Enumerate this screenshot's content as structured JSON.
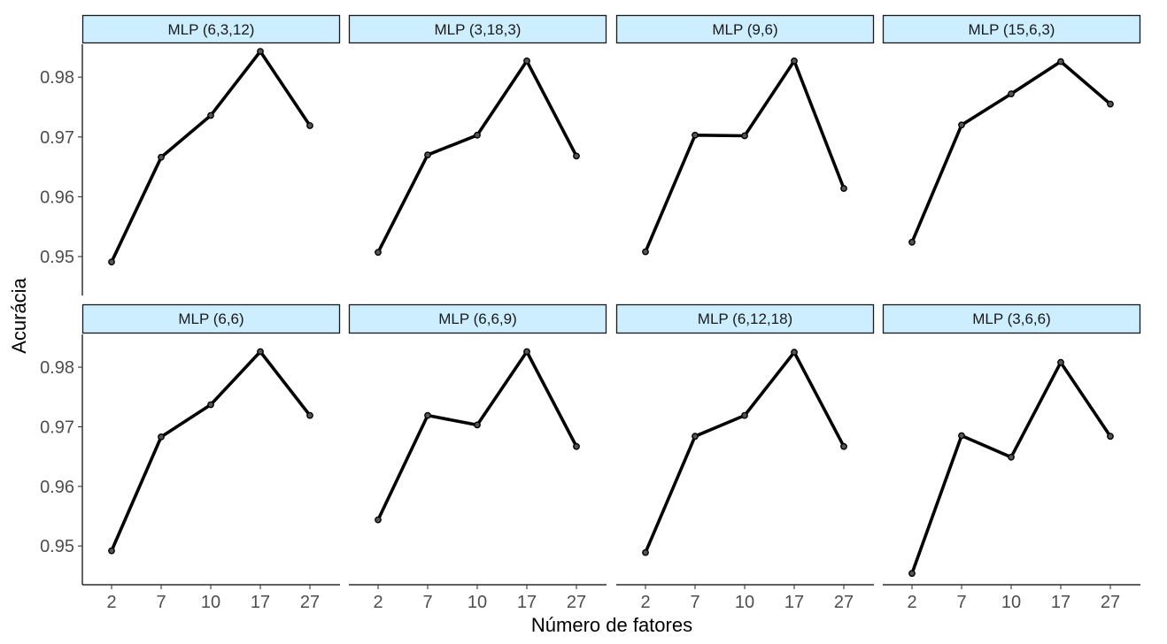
{
  "chart_data": {
    "type": "line",
    "xlabel": "Número de fatores",
    "ylabel": "Acurácia",
    "categories": [
      "2",
      "7",
      "10",
      "17",
      "27"
    ],
    "yticks": [
      0.95,
      0.96,
      0.97,
      0.98
    ],
    "ytick_labels": [
      "0.95",
      "0.96",
      "0.97",
      "0.98"
    ],
    "ylim": [
      0.9435,
      0.9855
    ],
    "grid": false,
    "strip_color": "#cceeff",
    "line_color": "#000000",
    "panels": [
      {
        "title": "MLP (6,3,12)",
        "values": [
          0.9491,
          0.9666,
          0.9736,
          0.9843,
          0.9719
        ]
      },
      {
        "title": "MLP (3,18,3)",
        "values": [
          0.9507,
          0.967,
          0.9703,
          0.9827,
          0.9668
        ]
      },
      {
        "title": "MLP (9,6)",
        "values": [
          0.9508,
          0.9703,
          0.9702,
          0.9827,
          0.9614
        ]
      },
      {
        "title": "MLP (15,6,3)",
        "values": [
          0.9524,
          0.972,
          0.9772,
          0.9826,
          0.9755
        ]
      },
      {
        "title": "MLP (6,6)",
        "values": [
          0.9492,
          0.9683,
          0.9737,
          0.9826,
          0.9719
        ]
      },
      {
        "title": "MLP (6,6,9)",
        "values": [
          0.9544,
          0.9719,
          0.9703,
          0.9826,
          0.9667
        ]
      },
      {
        "title": "MLP (6,12,18)",
        "values": [
          0.9489,
          0.9684,
          0.9719,
          0.9825,
          0.9667
        ]
      },
      {
        "title": "MLP (3,6,6)",
        "values": [
          0.9454,
          0.9685,
          0.9649,
          0.9808,
          0.9684
        ]
      }
    ]
  }
}
